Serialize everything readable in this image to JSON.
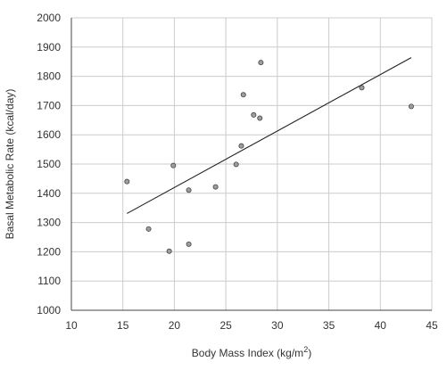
{
  "chart_data": {
    "type": "scatter",
    "title": "",
    "xlabel": "Body Mass Index (kg/m",
    "xlabel_superscript": "2",
    "xlabel_suffix": ")",
    "ylabel": "Basal Metabolic Rate (kcal/day)",
    "xlim": [
      10,
      45
    ],
    "ylim": [
      1000,
      2000
    ],
    "x_ticks": [
      10,
      15,
      20,
      25,
      30,
      35,
      40,
      45
    ],
    "y_ticks": [
      1000,
      1100,
      1200,
      1300,
      1400,
      1500,
      1600,
      1700,
      1800,
      1900,
      2000
    ],
    "grid": true,
    "legend": "none",
    "points": [
      {
        "x": 15.4,
        "y": 1440
      },
      {
        "x": 17.5,
        "y": 1278
      },
      {
        "x": 19.5,
        "y": 1202
      },
      {
        "x": 19.9,
        "y": 1495
      },
      {
        "x": 21.4,
        "y": 1411
      },
      {
        "x": 21.4,
        "y": 1226
      },
      {
        "x": 24.0,
        "y": 1422
      },
      {
        "x": 26.0,
        "y": 1499
      },
      {
        "x": 26.5,
        "y": 1562
      },
      {
        "x": 26.7,
        "y": 1737
      },
      {
        "x": 27.7,
        "y": 1668
      },
      {
        "x": 28.3,
        "y": 1657
      },
      {
        "x": 28.4,
        "y": 1847
      },
      {
        "x": 38.2,
        "y": 1761
      },
      {
        "x": 43.0,
        "y": 1697
      }
    ],
    "trendline": {
      "x": [
        15.4,
        43.0
      ],
      "y": [
        1331,
        1864
      ]
    },
    "colors": {
      "point_fill": "#9e9e9e",
      "point_stroke": "#444444",
      "line": "#222222",
      "grid": "#cccccc",
      "axis": "#444444"
    }
  }
}
